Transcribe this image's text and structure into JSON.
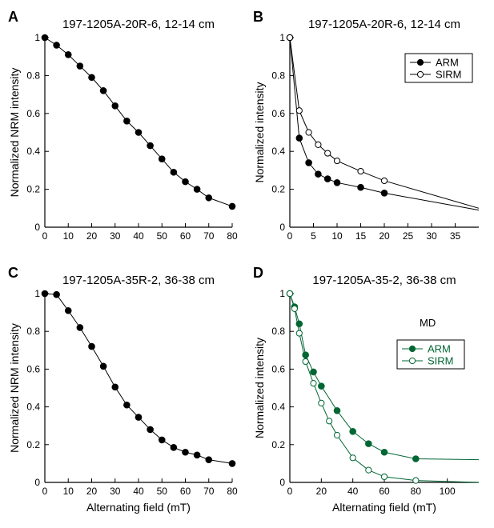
{
  "chart_data": [
    {
      "panel_label": "A",
      "type": "line",
      "title": "197-1205A-20R-6, 12-14 cm",
      "xlabel": "",
      "ylabel": "Normalized NRM intensity",
      "xlim": [
        0,
        80
      ],
      "ylim": [
        0,
        1
      ],
      "xticks": [
        0,
        10,
        20,
        30,
        40,
        50,
        60,
        70,
        80
      ],
      "yticks": [
        0,
        0.2,
        0.4,
        0.6,
        0.8,
        1
      ],
      "ytick_labels": [
        "0",
        "0.2",
        "0.4",
        "0.6",
        "0.8",
        "1"
      ],
      "grid": false,
      "series": [
        {
          "name": "",
          "color": "#000000",
          "marker": "filled",
          "x": [
            0,
            5,
            10,
            15,
            20,
            25,
            30,
            35,
            40,
            45,
            50,
            55,
            60,
            65,
            70,
            80
          ],
          "y": [
            1.0,
            0.96,
            0.91,
            0.85,
            0.79,
            0.72,
            0.64,
            0.56,
            0.5,
            0.43,
            0.36,
            0.29,
            0.24,
            0.2,
            0.155,
            0.11
          ]
        }
      ]
    },
    {
      "panel_label": "B",
      "type": "line",
      "title": "197-1205A-20R-6, 12-14 cm",
      "xlabel": "",
      "ylabel": "Normalized intensity",
      "xlim": [
        0,
        40
      ],
      "ylim": [
        0,
        1
      ],
      "xticks": [
        0,
        5,
        10,
        15,
        20,
        25,
        30,
        35
      ],
      "yticks": [
        0,
        0.2,
        0.4,
        0.6,
        0.8,
        1
      ],
      "ytick_labels": [
        "0",
        "0.2",
        "0.4",
        "0.6",
        "0.8",
        "1"
      ],
      "grid": false,
      "legend": "top-right",
      "series": [
        {
          "name": "ARM",
          "color": "#000000",
          "marker": "filled",
          "x": [
            0,
            2,
            4,
            6,
            8,
            10,
            15,
            20
          ],
          "y": [
            1.0,
            0.47,
            0.34,
            0.28,
            0.255,
            0.235,
            0.21,
            0.18
          ],
          "line_extends_to": [
            40,
            0.09
          ]
        },
        {
          "name": "SIRM",
          "color": "#000000",
          "marker": "open",
          "x": [
            0,
            2,
            4,
            6,
            8,
            10,
            15,
            20
          ],
          "y": [
            1.0,
            0.615,
            0.5,
            0.435,
            0.39,
            0.35,
            0.295,
            0.245
          ],
          "line_extends_to": [
            40,
            0.1
          ]
        }
      ]
    },
    {
      "panel_label": "C",
      "type": "line",
      "title": "197-1205A-35R-2, 36-38 cm",
      "xlabel": "Alternating field (mT)",
      "ylabel": "Normalized NRM intensity",
      "xlim": [
        0,
        80
      ],
      "ylim": [
        0,
        1
      ],
      "xticks": [
        0,
        10,
        20,
        30,
        40,
        50,
        60,
        70,
        80
      ],
      "yticks": [
        0,
        0.2,
        0.4,
        0.6,
        0.8,
        1
      ],
      "ytick_labels": [
        "0",
        "0.2",
        "0.4",
        "0.6",
        "0.8",
        "1"
      ],
      "grid": false,
      "series": [
        {
          "name": "",
          "color": "#000000",
          "marker": "filled",
          "x": [
            0,
            5,
            10,
            15,
            20,
            25,
            30,
            35,
            40,
            45,
            50,
            55,
            60,
            65,
            70,
            80
          ],
          "y": [
            1.0,
            0.995,
            0.91,
            0.82,
            0.72,
            0.615,
            0.505,
            0.41,
            0.345,
            0.28,
            0.225,
            0.185,
            0.16,
            0.145,
            0.12,
            0.1
          ]
        }
      ]
    },
    {
      "panel_label": "D",
      "type": "line",
      "title": "197-1205A-35-2, 36-38 cm",
      "xlabel": "Alternating field (mT)",
      "ylabel": "Normalized intensity",
      "xlim": [
        0,
        120
      ],
      "ylim": [
        0,
        1
      ],
      "xticks": [
        0,
        20,
        40,
        60,
        80,
        100
      ],
      "yticks": [
        0,
        0.2,
        0.4,
        0.6,
        0.8,
        1
      ],
      "ytick_labels": [
        "0",
        "0.2",
        "0.4",
        "0.6",
        "0.8",
        "1"
      ],
      "grid": false,
      "legend": "right",
      "annotation": "MD",
      "series": [
        {
          "name": "ARM",
          "color": "#006633",
          "marker": "filled",
          "x": [
            0,
            3,
            6,
            10,
            15,
            20,
            30,
            40,
            50,
            60,
            80
          ],
          "y": [
            1.0,
            0.93,
            0.84,
            0.675,
            0.585,
            0.51,
            0.38,
            0.27,
            0.205,
            0.16,
            0.125
          ],
          "line_extends_to": [
            120,
            0.12
          ]
        },
        {
          "name": "SIRM",
          "color": "#006633",
          "marker": "open",
          "x": [
            0,
            3,
            6,
            10,
            15,
            20,
            25,
            30,
            40,
            50,
            60,
            80
          ],
          "y": [
            1.0,
            0.92,
            0.79,
            0.64,
            0.525,
            0.42,
            0.325,
            0.25,
            0.13,
            0.065,
            0.03,
            0.01
          ],
          "line_extends_to": [
            120,
            0.0
          ]
        }
      ]
    }
  ]
}
